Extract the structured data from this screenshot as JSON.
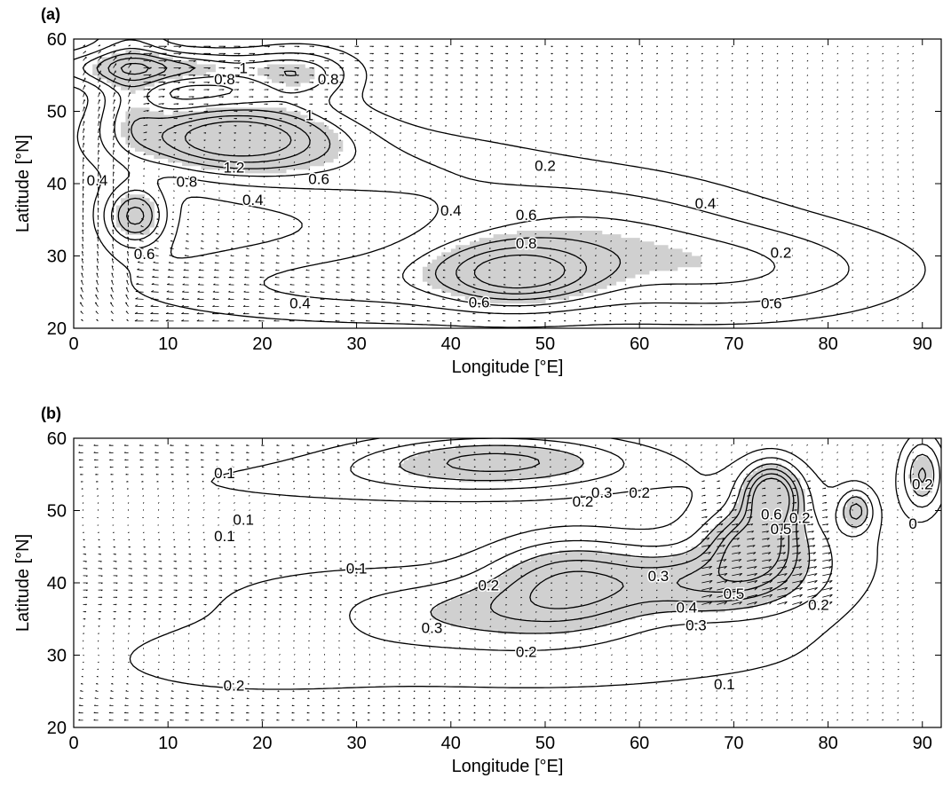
{
  "chart_data": [
    {
      "panel": "(a)",
      "type": "contour",
      "xlabel": "Longitude [°E]",
      "ylabel": "Latitude [°N]",
      "xlim": [
        0,
        92
      ],
      "ylim": [
        20,
        60
      ],
      "xticks": [
        "0",
        "10",
        "20",
        "30",
        "40",
        "50",
        "60",
        "70",
        "80",
        "90"
      ],
      "yticks": [
        "20",
        "30",
        "40",
        "50",
        "60"
      ],
      "shade_threshold": 0.7,
      "grid": false,
      "contour_levels": [
        0.2,
        0.4,
        0.6,
        0.8,
        1,
        1.2
      ],
      "field": {
        "base": 0.05,
        "bumps": [
          {
            "x": 17,
            "y": 46.5,
            "a": 1.35,
            "sx": 7.5,
            "sy": 3.2
          },
          {
            "x": 6,
            "y": 54,
            "a": 0.5,
            "sx": 2.5,
            "sy": 6
          },
          {
            "x": 9,
            "y": 56,
            "a": 0.8,
            "sx": 8,
            "sy": 1.6
          },
          {
            "x": 24,
            "y": 55,
            "a": 0.6,
            "sx": 4,
            "sy": 2.5
          },
          {
            "x": 6.5,
            "y": 35.5,
            "a": 1.0,
            "sx": 2.2,
            "sy": 2.8
          },
          {
            "x": 30,
            "y": 42,
            "a": 0.35,
            "sx": 13,
            "sy": 4
          },
          {
            "x": 47,
            "y": 27.5,
            "a": 0.9,
            "sx": 5.5,
            "sy": 2.8
          },
          {
            "x": 47,
            "y": 29,
            "a": 0.3,
            "sx": 16,
            "sy": 5.5
          },
          {
            "x": 72,
            "y": 28,
            "a": 0.45,
            "sx": 12,
            "sy": 4.5
          },
          {
            "x": 55,
            "y": 35,
            "a": 0.35,
            "sx": 12,
            "sy": 5
          },
          {
            "x": 25,
            "y": 26,
            "a": 0.3,
            "sx": 15,
            "sy": 3.5
          }
        ]
      },
      "contour_labels": [
        {
          "text": "1",
          "x": 18,
          "y": 56
        },
        {
          "text": "0.8",
          "x": 16,
          "y": 54.5
        },
        {
          "text": "0.8",
          "x": 27,
          "y": 54.5
        },
        {
          "text": "1",
          "x": 25,
          "y": 49.5
        },
        {
          "text": "0.4",
          "x": 2.5,
          "y": 40.5
        },
        {
          "text": "1.2",
          "x": 17,
          "y": 42.3
        },
        {
          "text": "0.8",
          "x": 12,
          "y": 40.3
        },
        {
          "text": "0.6",
          "x": 26,
          "y": 40.7
        },
        {
          "text": "0.4",
          "x": 19,
          "y": 37.8
        },
        {
          "text": "0.6",
          "x": 7.5,
          "y": 30.3
        },
        {
          "text": "0.4",
          "x": 40,
          "y": 36.3
        },
        {
          "text": "0.2",
          "x": 50,
          "y": 42.5
        },
        {
          "text": "0.6",
          "x": 48,
          "y": 35.7
        },
        {
          "text": "0.8",
          "x": 48,
          "y": 31.8
        },
        {
          "text": "0.4",
          "x": 67,
          "y": 37.3
        },
        {
          "text": "0.2",
          "x": 75,
          "y": 30.5
        },
        {
          "text": "0.4",
          "x": 24,
          "y": 23.5
        },
        {
          "text": "0.6",
          "x": 43,
          "y": 23.6
        },
        {
          "text": "0.6",
          "x": 74,
          "y": 23.5
        }
      ],
      "flow": {
        "type": "gyre",
        "xmin": 1,
        "xmax": 90,
        "ymin": 21,
        "ymax": 59,
        "strong_west_x": 4
      }
    },
    {
      "panel": "(b)",
      "type": "contour",
      "xlabel": "Longitude [°E]",
      "ylabel": "Latitude [°N]",
      "xlim": [
        0,
        92
      ],
      "ylim": [
        20,
        60
      ],
      "xticks": [
        "0",
        "10",
        "20",
        "30",
        "40",
        "50",
        "60",
        "70",
        "80",
        "90"
      ],
      "yticks": [
        "20",
        "30",
        "40",
        "50",
        "60"
      ],
      "shade_threshold": 0.3,
      "grid": false,
      "contour_levels": [
        0.1,
        0.2,
        0.3,
        0.4,
        0.5,
        0.6
      ],
      "field": {
        "base": 0.0,
        "bumps": [
          {
            "x": 45,
            "y": 57,
            "a": 0.38,
            "sx": 10,
            "sy": 2.5
          },
          {
            "x": 30,
            "y": 54,
            "a": 0.12,
            "sx": 24,
            "sy": 3
          },
          {
            "x": 53,
            "y": 40.5,
            "a": 0.42,
            "sx": 6,
            "sy": 4
          },
          {
            "x": 45,
            "y": 36,
            "a": 0.2,
            "sx": 10,
            "sy": 3
          },
          {
            "x": 30,
            "y": 38,
            "a": 0.12,
            "sx": 18,
            "sy": 5
          },
          {
            "x": 74,
            "y": 52,
            "a": 0.7,
            "sx": 2,
            "sy": 3
          },
          {
            "x": 72,
            "y": 45,
            "a": 0.5,
            "sx": 3,
            "sy": 3
          },
          {
            "x": 67,
            "y": 40,
            "a": 0.35,
            "sx": 6,
            "sy": 3
          },
          {
            "x": 75,
            "y": 44,
            "a": 0.22,
            "sx": 8,
            "sy": 7
          },
          {
            "x": 83,
            "y": 50,
            "a": 0.35,
            "sx": 1.2,
            "sy": 2
          },
          {
            "x": 90,
            "y": 55,
            "a": 0.4,
            "sx": 1.5,
            "sy": 3.5
          },
          {
            "x": 50,
            "y": 29,
            "a": 0.13,
            "sx": 24,
            "sy": 4.5
          },
          {
            "x": 17,
            "y": 29,
            "a": 0.12,
            "sx": 10,
            "sy": 3
          }
        ]
      },
      "contour_labels": [
        {
          "text": "0.1",
          "x": 16,
          "y": 55.2
        },
        {
          "text": "0.3",
          "x": 56,
          "y": 52.5
        },
        {
          "text": "0.2",
          "x": 60,
          "y": 52.5
        },
        {
          "text": "0.2",
          "x": 54,
          "y": 51.3
        },
        {
          "text": "0.1",
          "x": 18,
          "y": 48.8
        },
        {
          "text": "0.1",
          "x": 16,
          "y": 46.5
        },
        {
          "text": "0.1",
          "x": 30,
          "y": 42
        },
        {
          "text": "0.2",
          "x": 44,
          "y": 39.7
        },
        {
          "text": "0.3",
          "x": 38,
          "y": 33.8
        },
        {
          "text": "0.3",
          "x": 62,
          "y": 41
        },
        {
          "text": "0.2",
          "x": 77,
          "y": 49
        },
        {
          "text": "0.5",
          "x": 75,
          "y": 47.5
        },
        {
          "text": "0.6",
          "x": 74,
          "y": 49.5
        },
        {
          "text": "0.2",
          "x": 90,
          "y": 53.7
        },
        {
          "text": "0",
          "x": 89,
          "y": 48.2
        },
        {
          "text": "0.5",
          "x": 70,
          "y": 38.5
        },
        {
          "text": "0.4",
          "x": 65,
          "y": 36.6
        },
        {
          "text": "0.3",
          "x": 66,
          "y": 34.2
        },
        {
          "text": "0.2",
          "x": 79,
          "y": 37
        },
        {
          "text": "0.2",
          "x": 48,
          "y": 30.5
        },
        {
          "text": "0.1",
          "x": 69,
          "y": 26
        },
        {
          "text": "0.2",
          "x": 17,
          "y": 25.8
        }
      ],
      "flow": {
        "type": "multi",
        "xmin": 1,
        "xmax": 90,
        "ymin": 21,
        "ymax": 59,
        "strong_west_x": 0
      }
    }
  ]
}
